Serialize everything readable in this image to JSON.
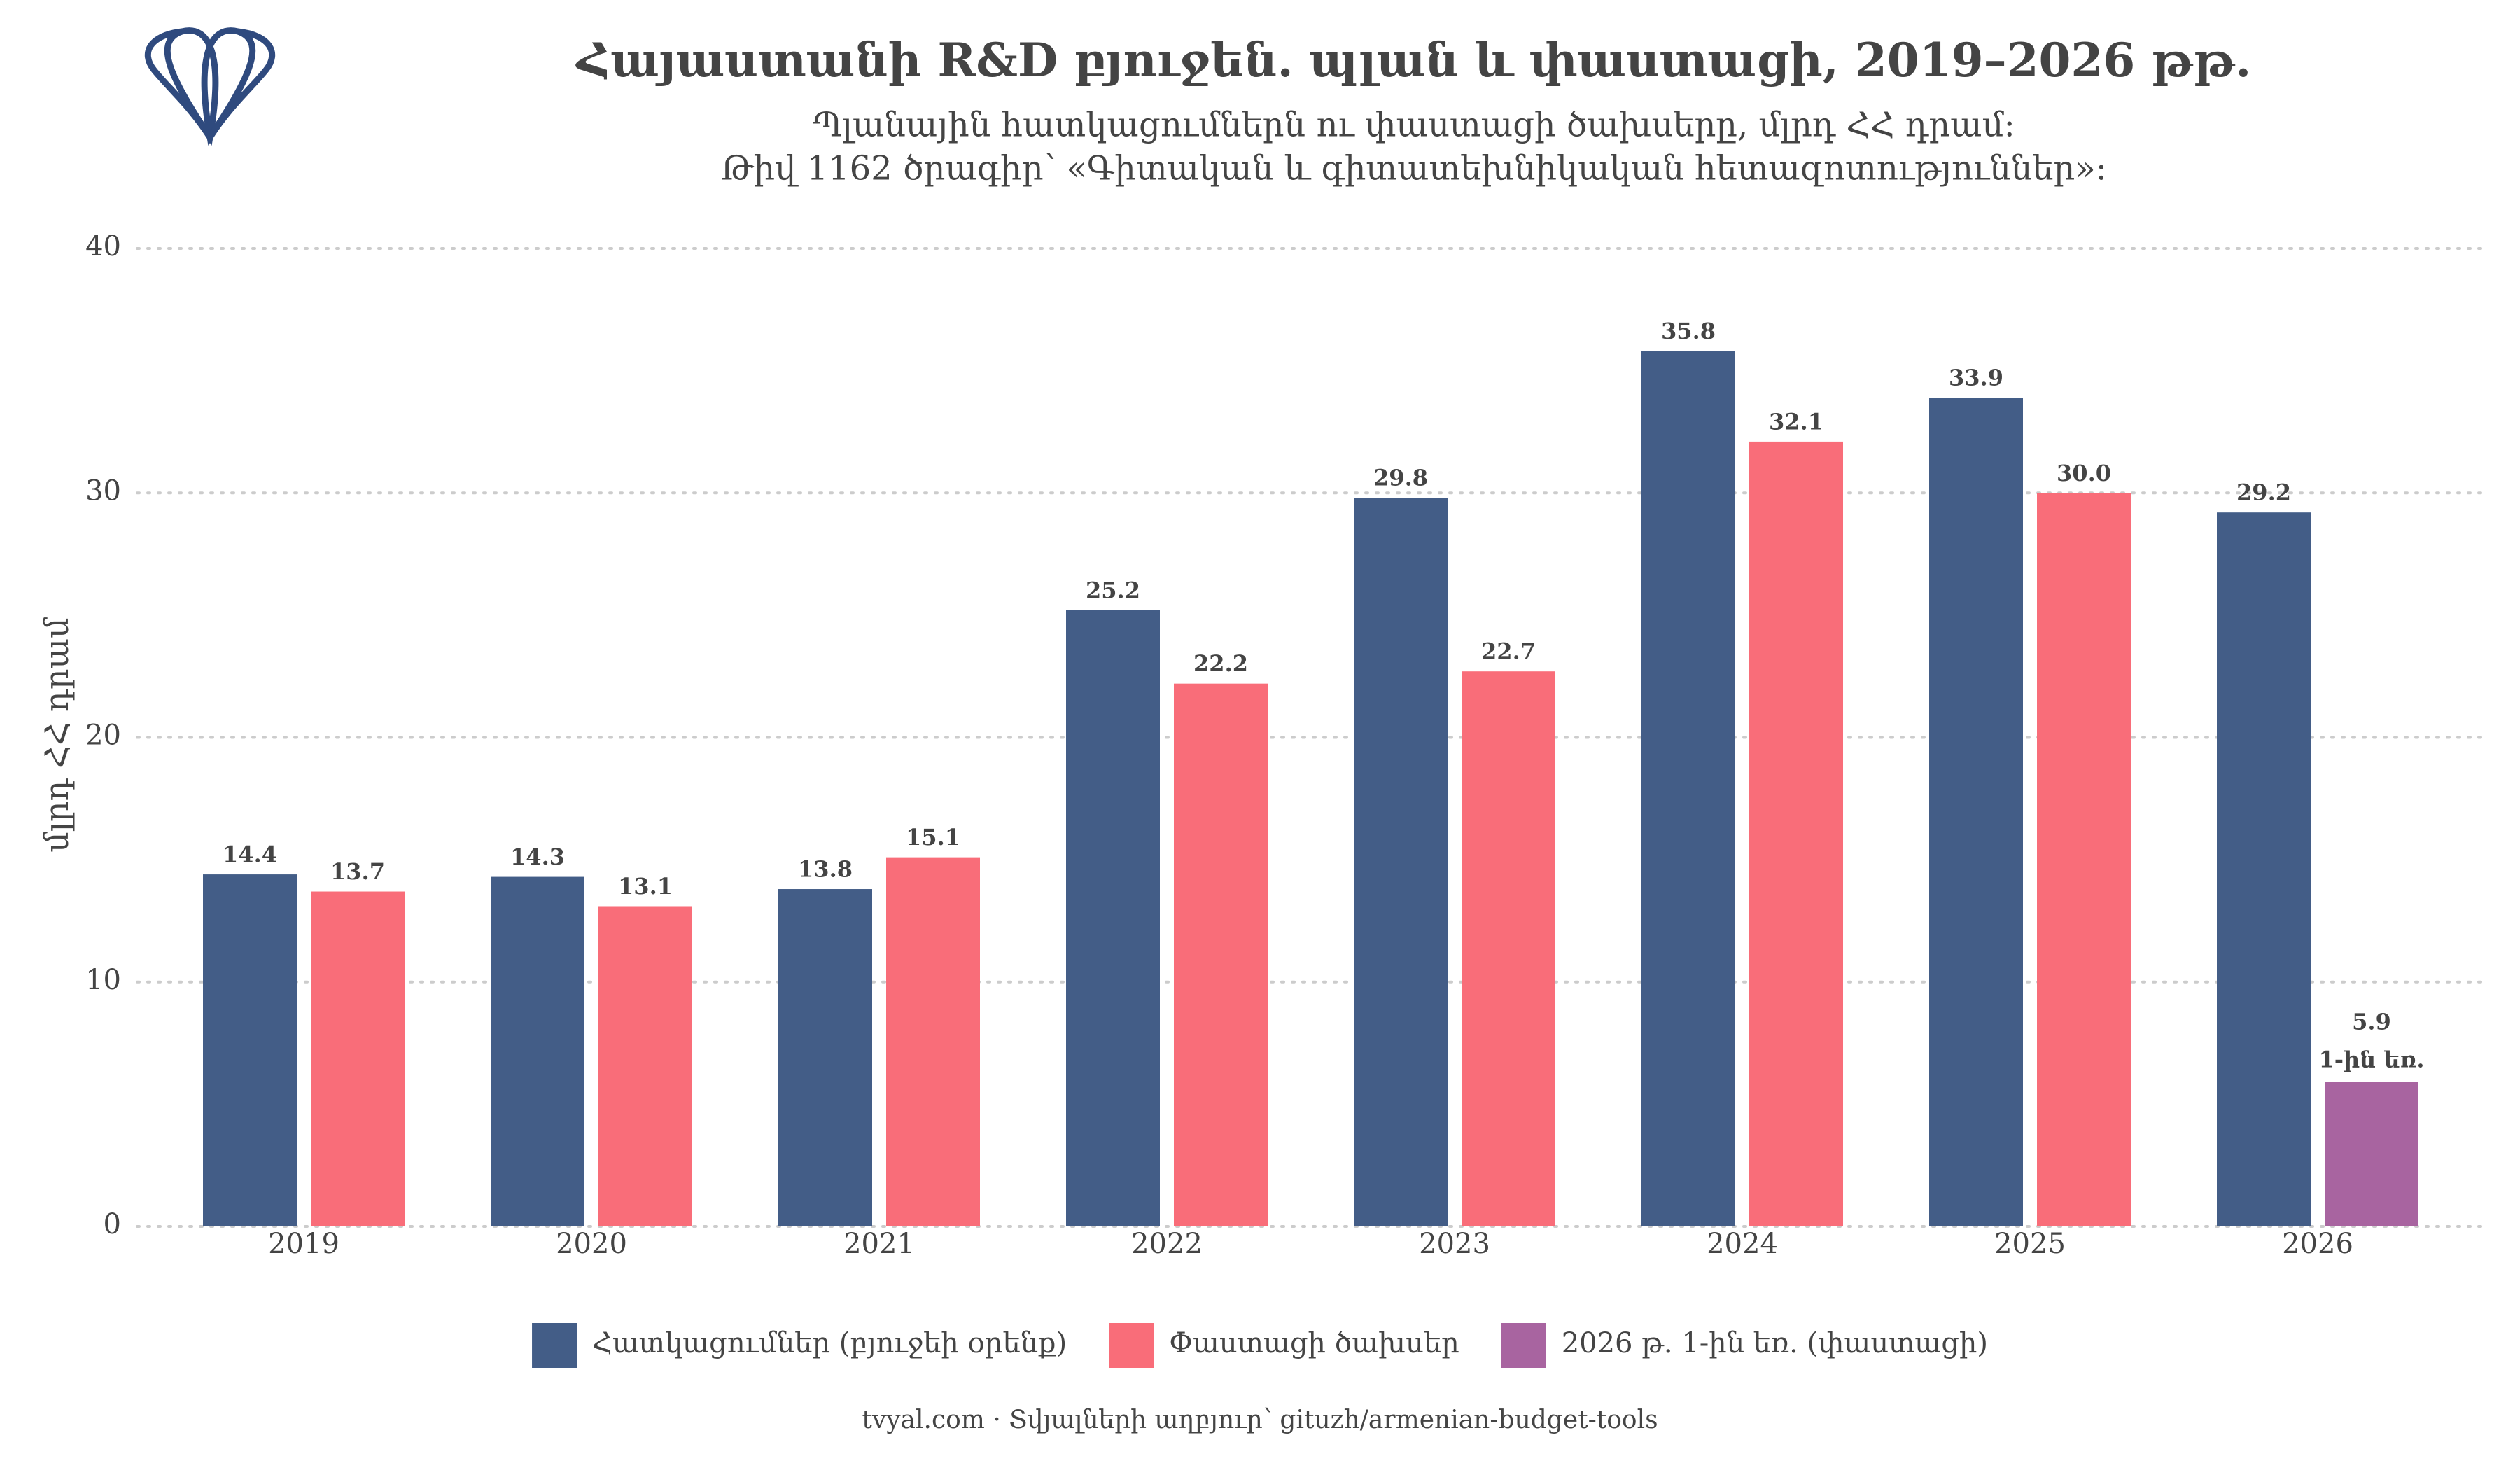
{
  "chart_data": {
    "type": "bar",
    "title": "Հայաստանի R&D բյուջեն. պլան և փաստացի, 2019–2026 թթ.",
    "subtitle": [
      "Պլանային հատկացումներն ու փաստացի ծախսերը, մլրդ ՀՀ դրամ:",
      "Թիվ 1162 ծրագիր՝ «Գիտական և գիտատեխնիկական հետազոտություններ»:"
    ],
    "y_label": "մլրդ ՀՀ դրամ",
    "categories": [
      "2019",
      "2020",
      "2021",
      "2022",
      "2023",
      "2024",
      "2025",
      "2026"
    ],
    "series": [
      {
        "name": "Հատկացումներ (բյուջեի օրենք)",
        "color": "#435d87",
        "values": [
          14.4,
          14.3,
          13.8,
          25.2,
          29.8,
          35.8,
          33.9,
          29.2
        ],
        "value_labels": [
          "14.4",
          "14.3",
          "13.8",
          "25.2",
          "29.8",
          "35.8",
          "33.9",
          "29.2"
        ]
      },
      {
        "name": "Փաստացի ծախսեր",
        "color": "#f96d79",
        "values": [
          13.7,
          13.1,
          15.1,
          22.2,
          22.7,
          32.1,
          30.0,
          null
        ],
        "value_labels": [
          "13.7",
          "13.1",
          "15.1",
          "22.2",
          "22.7",
          "32.1",
          "30.0",
          null
        ]
      },
      {
        "name": "2026 թ. 1-ին եռ. (փաստացի)",
        "color": "#a864a0",
        "values": [
          null,
          null,
          null,
          null,
          null,
          null,
          null,
          5.9
        ],
        "value_labels": [
          null,
          null,
          null,
          null,
          null,
          null,
          null,
          "5.9"
        ],
        "note": "1-ին եռ."
      }
    ],
    "ylim": [
      0,
      40
    ],
    "yticks": [
      0,
      10,
      20,
      30,
      40
    ],
    "grid": true,
    "legend": "bottom",
    "footer": "tvyal.com  ·  Տվյալների աղբյուր՝ gituzh/armenian-budget-tools"
  }
}
